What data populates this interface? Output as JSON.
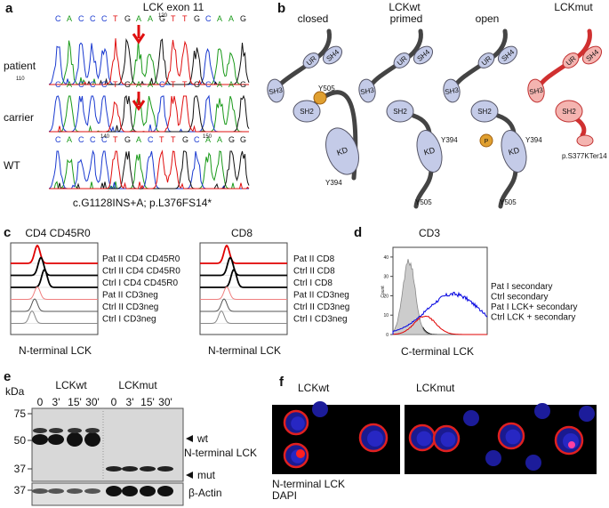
{
  "panel_a": {
    "label": "a",
    "title": "LCK exon 11",
    "sequences": [
      "CACCCTGAAGTTGCAAG",
      "CACCCTGAACTTGCAAG",
      "CACCCTGACTTGCAAGG"
    ],
    "positions": [
      120,
      110,
      140,
      150
    ],
    "rows": [
      "patient",
      "carrier",
      "WT"
    ],
    "caption": "c.G1128INS+A; p.L376FS14*"
  },
  "panel_b": {
    "label": "b",
    "states": [
      "closed",
      "primed",
      "open"
    ],
    "constructs": [
      "LCKwt",
      "LCKmut"
    ],
    "domains": {
      "ur": "UR",
      "sh4": "SH4",
      "sh3": "SH3",
      "sh2": "SH2",
      "kd": "KD"
    },
    "sites": {
      "y505": "Y505",
      "y394": "Y394",
      "phospho": "P"
    },
    "mutation": "p.S377KTer14"
  },
  "panel_c": {
    "label": "c",
    "plots": [
      {
        "title": "CD4 CD45R0",
        "xlabel": "N-terminal LCK",
        "legend": [
          {
            "name": "Pat II CD4 CD45R0",
            "color": "#e00000"
          },
          {
            "name": "Ctrl II CD4 CD45R0",
            "color": "#000000"
          },
          {
            "name": "Ctrl I CD4 CD45R0",
            "color": "#000000"
          },
          {
            "name": "Pat II CD3neg",
            "color": "#f08080"
          },
          {
            "name": "Ctrl II CD3neg",
            "color": "#555555"
          },
          {
            "name": "Ctrl I CD3neg",
            "color": "#888888"
          }
        ]
      },
      {
        "title": "CD8",
        "xlabel": "N-terminal LCK",
        "legend": [
          {
            "name": "Pat II CD8",
            "color": "#e00000"
          },
          {
            "name": "Ctrl II CD8",
            "color": "#000000"
          },
          {
            "name": "Ctrl I CD8",
            "color": "#000000"
          },
          {
            "name": "Pat II CD3neg",
            "color": "#f08080"
          },
          {
            "name": "Ctrl II CD3neg",
            "color": "#555555"
          },
          {
            "name": "Ctrl I CD3neg",
            "color": "#888888"
          }
        ]
      }
    ]
  },
  "panel_d": {
    "label": "d",
    "title": "CD3",
    "ylabel": "Count",
    "xlabel": "C-terminal LCK",
    "ylim": [
      0,
      45
    ],
    "yticks": [
      0,
      10,
      20,
      30,
      40
    ],
    "legend": [
      {
        "name": "Pat I secondary",
        "color": "#000000"
      },
      {
        "name": "Ctrl secondary",
        "color": "#999999"
      },
      {
        "name": "Pat I LCK+ secondary",
        "color": "#e00000"
      },
      {
        "name": "Ctrl LCK + secondary",
        "color": "#0000e0"
      }
    ]
  },
  "panel_e": {
    "label": "e",
    "unit": "kDa",
    "groups": [
      "LCKwt",
      "LCKmut"
    ],
    "timepoints": [
      "0",
      "3'",
      "15'",
      "30'"
    ],
    "markers": [
      75,
      50,
      37,
      37
    ],
    "bands": {
      "wt": "wt",
      "antibody": "N-terminal LCK",
      "mut": "mut",
      "loading": "β-Actin"
    }
  },
  "panel_f": {
    "label": "f",
    "groups": [
      "LCKwt",
      "LCKmut"
    ],
    "stains": [
      {
        "name": "N-terminal LCK",
        "color": "#e00000"
      },
      {
        "name": "DAPI",
        "color": "#0000ff"
      }
    ]
  }
}
